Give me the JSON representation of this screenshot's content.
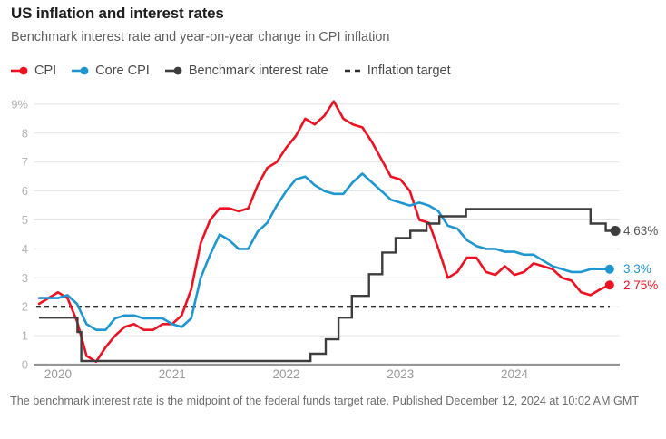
{
  "title": "US inflation and interest rates",
  "subtitle": "Benchmark interest rate and year-on-year change in CPI inflation",
  "footer": "The benchmark interest rate is the midpoint of the federal funds target rate. Published December 12, 2024 at 10:02 AM GMT",
  "colors": {
    "cpi": "#ee1122",
    "core_cpi": "#1e96d2",
    "benchmark": "#3d3d3d",
    "benchmark_label": "#575757",
    "target": "#2f2f2f",
    "grid": "#e4e4e4",
    "zero_line": "#969696",
    "y_label": "#b3b3b3",
    "x_label": "#9a9a9a"
  },
  "legend": [
    {
      "id": "cpi",
      "label": "CPI",
      "color": "#ee1122",
      "marker": "line-dot"
    },
    {
      "id": "core-cpi",
      "label": "Core CPI",
      "color": "#1e96d2",
      "marker": "line-dot"
    },
    {
      "id": "benchmark-interest-rate",
      "label": "Benchmark interest rate",
      "color": "#3d3d3d",
      "marker": "line-dot"
    },
    {
      "id": "inflation-target",
      "label": "Inflation target",
      "color": "#2f2f2f",
      "marker": "dash"
    }
  ],
  "chart_data": {
    "type": "line",
    "title": "US inflation and interest rates",
    "x_unit": "month",
    "x_start": "2019-11",
    "x_end": "2024-11",
    "ylim": [
      0,
      9
    ],
    "grid": true,
    "yticks": [
      {
        "v": 0,
        "label": "0"
      },
      {
        "v": 1,
        "label": "1"
      },
      {
        "v": 2,
        "label": "2"
      },
      {
        "v": 3,
        "label": "3"
      },
      {
        "v": 4,
        "label": "4"
      },
      {
        "v": 5,
        "label": "5"
      },
      {
        "v": 6,
        "label": "6"
      },
      {
        "v": 7,
        "label": "7"
      },
      {
        "v": 8,
        "label": "8"
      },
      {
        "v": 9,
        "label": "9%"
      }
    ],
    "xticks": [
      {
        "m": 2,
        "label": "2020"
      },
      {
        "m": 14,
        "label": "2021"
      },
      {
        "m": 26,
        "label": "2022"
      },
      {
        "m": 38,
        "label": "2023"
      },
      {
        "m": 50,
        "label": "2024"
      }
    ],
    "series": [
      {
        "name": "CPI",
        "color": "#ee1122",
        "end_label": "2.75%",
        "values": [
          2.1,
          2.3,
          2.5,
          2.3,
          1.5,
          0.3,
          0.1,
          0.6,
          1.0,
          1.3,
          1.4,
          1.2,
          1.2,
          1.4,
          1.4,
          1.7,
          2.6,
          4.2,
          5.0,
          5.4,
          5.4,
          5.3,
          5.4,
          6.2,
          6.8,
          7.0,
          7.5,
          7.9,
          8.5,
          8.3,
          8.6,
          9.1,
          8.5,
          8.3,
          8.2,
          7.7,
          7.1,
          6.5,
          6.4,
          6.0,
          5.0,
          4.9,
          4.0,
          3.0,
          3.2,
          3.7,
          3.7,
          3.2,
          3.1,
          3.4,
          3.1,
          3.2,
          3.5,
          3.4,
          3.3,
          3.0,
          2.9,
          2.5,
          2.4,
          2.6,
          2.75
        ]
      },
      {
        "name": "Core CPI",
        "color": "#1e96d2",
        "end_label": "3.3%",
        "values": [
          2.3,
          2.3,
          2.3,
          2.4,
          2.1,
          1.4,
          1.2,
          1.2,
          1.6,
          1.7,
          1.7,
          1.6,
          1.6,
          1.6,
          1.4,
          1.3,
          1.6,
          3.0,
          3.8,
          4.5,
          4.3,
          4.0,
          4.0,
          4.6,
          4.9,
          5.5,
          6.0,
          6.4,
          6.5,
          6.2,
          6.0,
          5.9,
          5.9,
          6.3,
          6.6,
          6.3,
          6.0,
          5.7,
          5.6,
          5.5,
          5.6,
          5.5,
          5.3,
          4.8,
          4.7,
          4.3,
          4.1,
          4.0,
          4.0,
          3.9,
          3.9,
          3.8,
          3.8,
          3.6,
          3.4,
          3.3,
          3.2,
          3.2,
          3.3,
          3.3,
          3.3
        ]
      },
      {
        "name": "Benchmark interest rate",
        "color": "#3d3d3d",
        "end_label": "4.63%",
        "label_color": "#575757",
        "step_points": [
          [
            0,
            1.625
          ],
          [
            4.05,
            1.625
          ],
          [
            4.05,
            1.125
          ],
          [
            4.45,
            1.125
          ],
          [
            4.45,
            0.125
          ],
          [
            28.55,
            0.125
          ],
          [
            28.55,
            0.375
          ],
          [
            30.15,
            0.375
          ],
          [
            30.15,
            0.875
          ],
          [
            31.5,
            0.875
          ],
          [
            31.5,
            1.625
          ],
          [
            32.9,
            1.625
          ],
          [
            32.9,
            2.375
          ],
          [
            34.7,
            2.375
          ],
          [
            34.7,
            3.125
          ],
          [
            36.1,
            3.125
          ],
          [
            36.1,
            3.875
          ],
          [
            37.5,
            3.875
          ],
          [
            37.5,
            4.375
          ],
          [
            39.05,
            4.375
          ],
          [
            39.05,
            4.625
          ],
          [
            40.75,
            4.625
          ],
          [
            40.75,
            4.875
          ],
          [
            42.1,
            4.875
          ],
          [
            42.1,
            5.125
          ],
          [
            44.9,
            5.125
          ],
          [
            44.9,
            5.375
          ],
          [
            58.0,
            5.375
          ],
          [
            58.0,
            4.875
          ],
          [
            59.6,
            4.875
          ],
          [
            59.6,
            4.625
          ],
          [
            60.6,
            4.625
          ]
        ]
      },
      {
        "name": "Inflation target",
        "color": "#2f2f2f",
        "dashed": true,
        "target_value": 2
      }
    ]
  }
}
